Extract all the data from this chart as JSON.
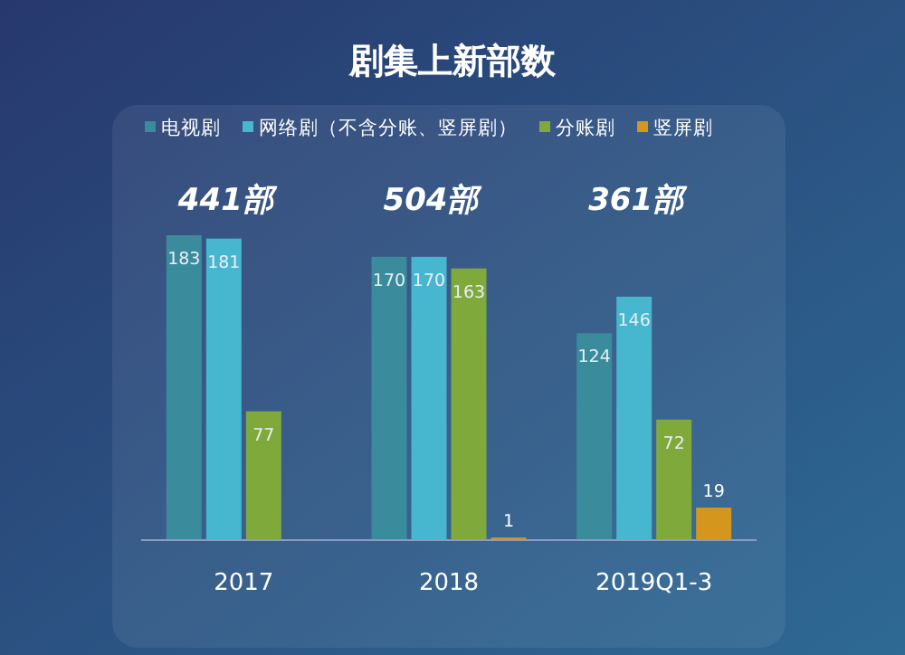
{
  "chart_data": {
    "type": "bar",
    "title": "剧集上新部数",
    "categories": [
      "2017",
      "2018",
      "2019Q1-3"
    ],
    "series": [
      {
        "name": "电视剧",
        "color": "#3a8c9c",
        "values": [
          183,
          170,
          124
        ]
      },
      {
        "name": "网络剧（不含分账、竖屏剧）",
        "color": "#47b6cf",
        "values": [
          181,
          170,
          146
        ]
      },
      {
        "name": "分账剧",
        "color": "#80a93c",
        "values": [
          77,
          163,
          72
        ]
      },
      {
        "name": "竖屏剧",
        "color": "#d4961c",
        "values": [
          null,
          1,
          19
        ]
      }
    ],
    "totals": [
      "441部",
      "504部",
      "361部"
    ],
    "data_labels": true,
    "legend": "top",
    "grid": false
  }
}
